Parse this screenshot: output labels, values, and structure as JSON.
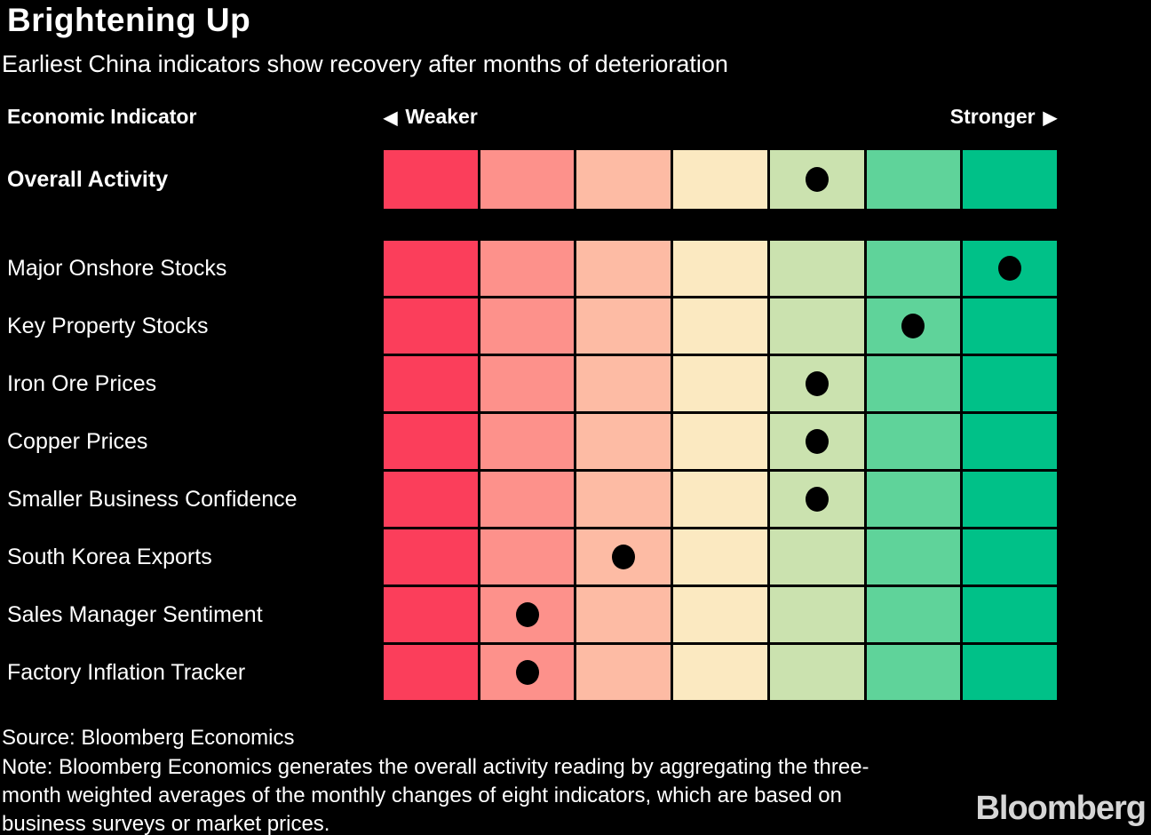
{
  "title": "Brightening Up",
  "subtitle": "Earliest China indicators show recovery after months of deterioration",
  "header": {
    "left": "Economic Indicator",
    "weaker": "Weaker",
    "weaker_arrow": "◀",
    "stronger": "Stronger",
    "stronger_arrow": "▶"
  },
  "chart_data": {
    "type": "heatmap",
    "title": "Brightening Up",
    "subtitle": "Earliest China indicators show recovery after months of deterioration",
    "x_axis": {
      "label_left": "Weaker",
      "label_right": "Stronger",
      "columns": 7,
      "scale": "7-step diverging scale, 1 = weakest (red) to 7 = strongest (green)"
    },
    "scale_colors": [
      "#FB3E5B",
      "#FD918B",
      "#FDBBA4",
      "#FBE9C1",
      "#CBE2AF",
      "#5FD39A",
      "#00C188"
    ],
    "dot_color": "#000000",
    "overall_row": {
      "label": "Overall Activity",
      "dot_column": 5
    },
    "rows": [
      {
        "label": "Major Onshore Stocks",
        "dot_column": 7
      },
      {
        "label": "Key Property Stocks",
        "dot_column": 6
      },
      {
        "label": "Iron Ore Prices",
        "dot_column": 5
      },
      {
        "label": "Copper Prices",
        "dot_column": 5
      },
      {
        "label": "Smaller Business Confidence",
        "dot_column": 5
      },
      {
        "label": "South Korea Exports",
        "dot_column": 3
      },
      {
        "label": "Sales Manager Sentiment",
        "dot_column": 2
      },
      {
        "label": "Factory Inflation Tracker",
        "dot_column": 2
      }
    ]
  },
  "footer": {
    "source": "Source: Bloomberg Economics",
    "note": "Note: Bloomberg Economics generates the overall activity reading by aggregating the three-month weighted averages of the monthly changes of eight indicators, which are based on business surveys or market prices."
  },
  "branding": {
    "logo": "Bloomberg"
  }
}
